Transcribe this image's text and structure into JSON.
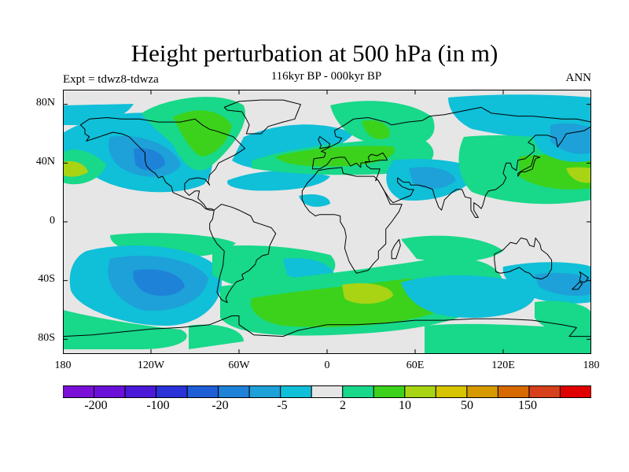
{
  "title": "Height perturbation at 500 hPa (in m)",
  "subtitle": "116kyr BP - 000kyr BP",
  "experiment": "Expt = tdwz8-tdwza",
  "season": "ANN",
  "lat_labels": [
    "80N",
    "40N",
    "0",
    "40S",
    "80S"
  ],
  "lon_labels": [
    "180",
    "120W",
    "60W",
    "0",
    "60E",
    "120E",
    "180"
  ],
  "colorbar": {
    "colors": [
      "#7a10d8",
      "#6a10d8",
      "#4a1ad8",
      "#2a32d8",
      "#1e5ed6",
      "#1e82d8",
      "#1ea0d8",
      "#10bfd8",
      "#e6e6e6",
      "#18d88a",
      "#3cd21c",
      "#a8d414",
      "#d6c400",
      "#d69a00",
      "#d66a00",
      "#d6401a",
      "#e00000"
    ],
    "labels": [
      "-200",
      "-100",
      "-20",
      "-5",
      "2",
      "10",
      "50",
      "150"
    ]
  },
  "field_colors": {
    "background": "#e6e6e6",
    "neg_weak": "#10bfd8",
    "neg_mid": "#1ea0d8",
    "neg_strong": "#1e82d8",
    "pos_weak": "#18d88a",
    "pos_mid": "#3cd21c",
    "pos_strong": "#a8d414"
  }
}
